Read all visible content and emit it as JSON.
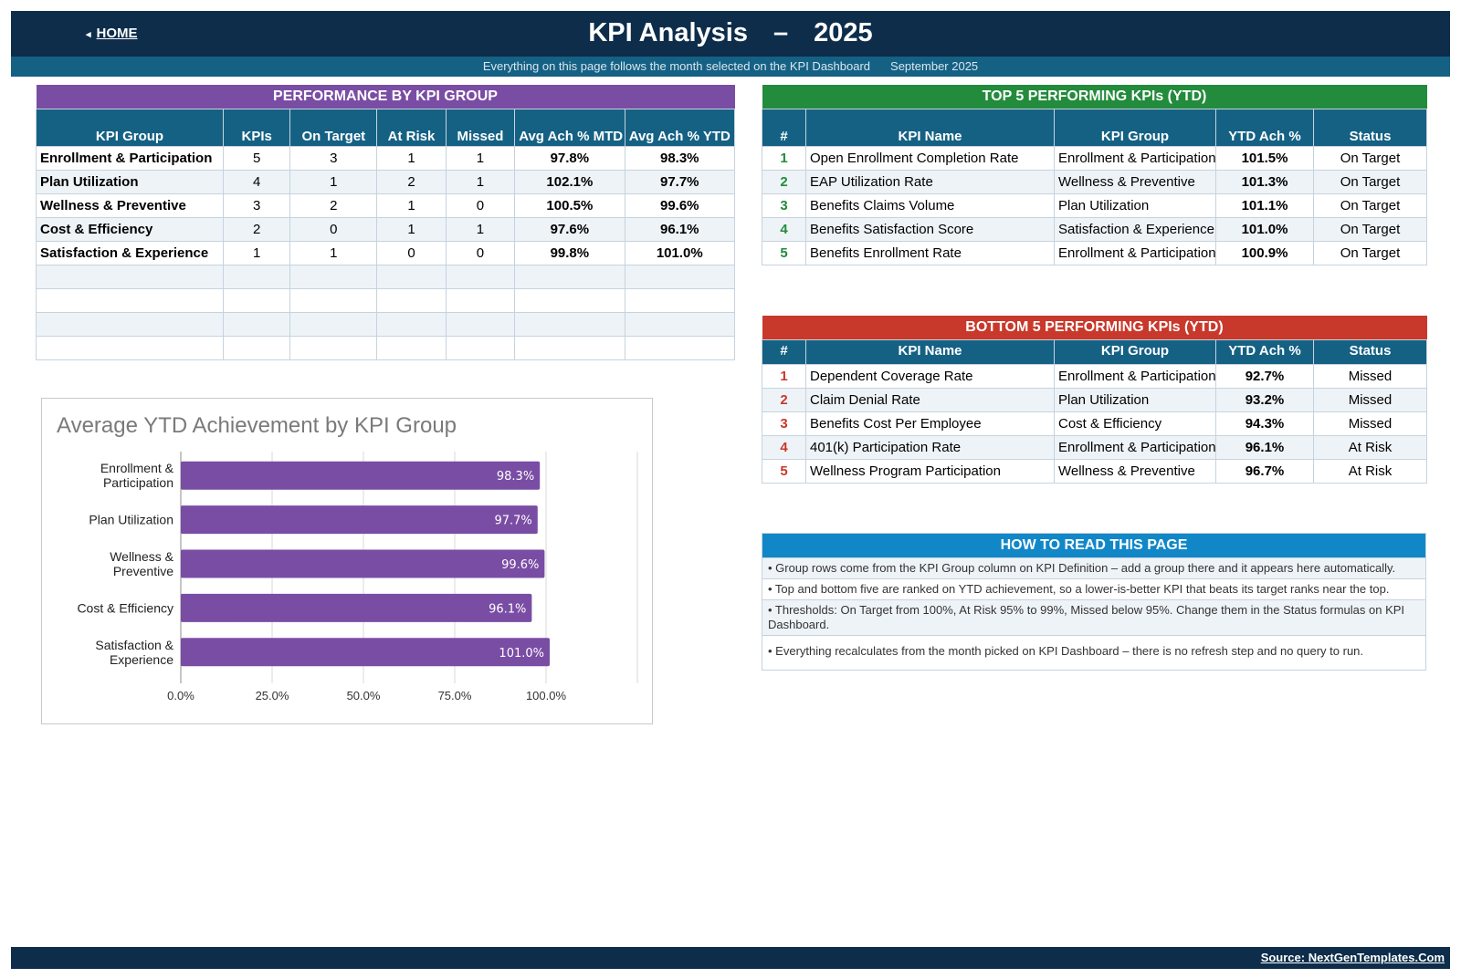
{
  "header": {
    "home_label": "HOME",
    "home_icon": "triangle-left-icon",
    "title": "KPI Analysis",
    "title_dash": "–",
    "title_year": "2025",
    "subtitle": "Everything on this page follows the month selected on the KPI Dashboard",
    "selected_month": "September 2025"
  },
  "colors": {
    "navy": "#0d2d4b",
    "teal_header": "#156184",
    "purple": "#7a4da4",
    "green": "#238b3c",
    "red": "#c8392b",
    "blue": "#1287c8"
  },
  "performance": {
    "caption": "PERFORMANCE BY KPI GROUP",
    "columns": [
      "KPI Group",
      "KPIs",
      "On Target",
      "At Risk",
      "Missed",
      "Avg Ach % MTD",
      "Avg Ach % YTD"
    ],
    "rows": [
      [
        "Enrollment & Participation",
        "5",
        "3",
        "1",
        "1",
        "97.8%",
        "98.3%"
      ],
      [
        "Plan Utilization",
        "4",
        "1",
        "2",
        "1",
        "102.1%",
        "97.7%"
      ],
      [
        "Wellness & Preventive",
        "3",
        "2",
        "1",
        "0",
        "100.5%",
        "99.6%"
      ],
      [
        "Cost & Efficiency",
        "2",
        "0",
        "1",
        "1",
        "97.6%",
        "96.1%"
      ],
      [
        "Satisfaction & Experience",
        "1",
        "1",
        "0",
        "0",
        "99.8%",
        "101.0%"
      ],
      [
        "",
        "",
        "",
        "",
        "",
        "",
        ""
      ],
      [
        "",
        "",
        "",
        "",
        "",
        "",
        ""
      ],
      [
        "",
        "",
        "",
        "",
        "",
        "",
        ""
      ],
      [
        "",
        "",
        "",
        "",
        "",
        "",
        ""
      ]
    ]
  },
  "top5": {
    "caption": "TOP 5 PERFORMING KPIs  (YTD)",
    "columns": [
      "#",
      "KPI Name",
      "KPI Group",
      "YTD Ach %",
      "Status"
    ],
    "rows": [
      [
        "1",
        "Open Enrollment Completion Rate",
        "Enrollment & Participation",
        "101.5%",
        "On Target"
      ],
      [
        "2",
        "EAP Utilization Rate",
        "Wellness & Preventive",
        "101.3%",
        "On Target"
      ],
      [
        "3",
        "Benefits Claims Volume",
        "Plan Utilization",
        "101.1%",
        "On Target"
      ],
      [
        "4",
        "Benefits Satisfaction Score",
        "Satisfaction & Experience",
        "101.0%",
        "On Target"
      ],
      [
        "5",
        "Benefits Enrollment Rate",
        "Enrollment & Participation",
        "100.9%",
        "On Target"
      ]
    ]
  },
  "bottom5": {
    "caption": "BOTTOM 5 PERFORMING KPIs  (YTD)",
    "columns": [
      "#",
      "KPI Name",
      "KPI Group",
      "YTD Ach %",
      "Status"
    ],
    "rows": [
      [
        "1",
        "Dependent Coverage Rate",
        "Enrollment & Participation",
        "92.7%",
        "Missed"
      ],
      [
        "2",
        "Claim Denial Rate",
        "Plan Utilization",
        "93.2%",
        "Missed"
      ],
      [
        "3",
        "Benefits Cost Per Employee",
        "Cost & Efficiency",
        "94.3%",
        "Missed"
      ],
      [
        "4",
        "401(k) Participation Rate",
        "Enrollment & Participation",
        "96.1%",
        "At Risk"
      ],
      [
        "5",
        "Wellness Program Participation",
        "Wellness & Preventive",
        "96.7%",
        "At Risk"
      ]
    ]
  },
  "howto": {
    "caption": "HOW TO READ THIS PAGE",
    "items": [
      "•  Group rows come from the KPI Group column on KPI Definition – add a group there and it appears here automatically.",
      "•  Top and bottom five are ranked on YTD achievement, so a lower-is-better KPI that beats its target ranks near the top.",
      "•  Thresholds: On Target from 100%, At Risk 95% to 99%, Missed below 95%. Change them in the Status formulas on KPI Dashboard.",
      "•  Everything recalculates from the month picked on KPI Dashboard – there is no refresh step and no query to run."
    ]
  },
  "chart_data": {
    "type": "bar",
    "orientation": "horizontal",
    "title": "Average YTD Achievement by KPI Group",
    "categories": [
      [
        "Enrollment &",
        "Participation"
      ],
      [
        "Plan Utilization"
      ],
      [
        "Wellness &",
        "Preventive"
      ],
      [
        "Cost & Efficiency"
      ],
      [
        "Satisfaction &",
        "Experience"
      ]
    ],
    "values": [
      98.3,
      97.7,
      99.6,
      96.1,
      101.0
    ],
    "value_labels": [
      "98.3%",
      "97.7%",
      "99.6%",
      "96.1%",
      "101.0%"
    ],
    "xlim": [
      0,
      125
    ],
    "ticks": [
      0,
      25,
      50,
      75,
      100
    ],
    "tick_labels": [
      "0.0%",
      "25.0%",
      "50.0%",
      "75.0%",
      "100.0%"
    ],
    "bar_color": "#7a4da4",
    "grid": true,
    "legend": "none"
  },
  "footer": {
    "source": "Source: NextGenTemplates.Com"
  }
}
